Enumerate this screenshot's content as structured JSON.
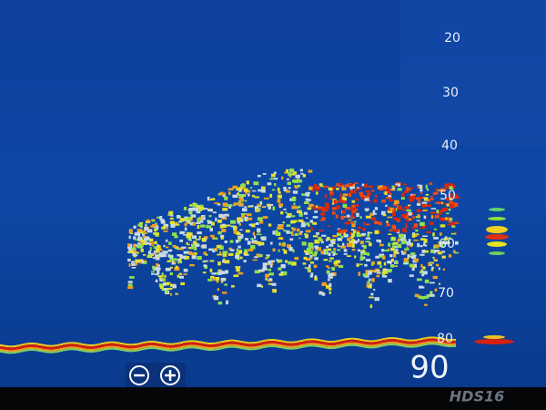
{
  "screen": {
    "depth_scale": [
      "20",
      "30",
      "40",
      "50",
      "60",
      "70",
      "80"
    ],
    "max_depth": "90",
    "brand": "HDS16"
  }
}
